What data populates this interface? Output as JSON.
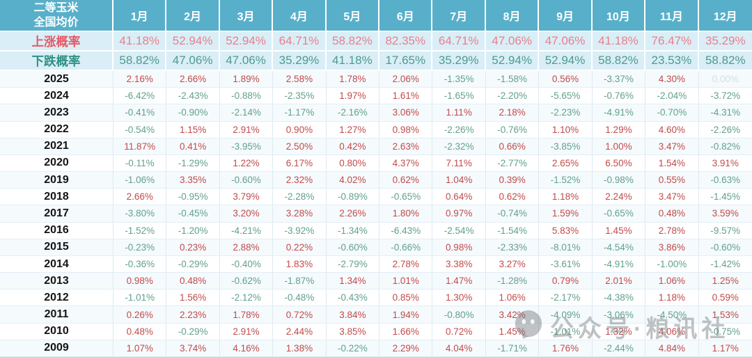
{
  "chart_data": {
    "type": "table",
    "title": "二等玉米 全国均价",
    "corner_header": [
      "二等玉米",
      "全国均价"
    ],
    "columns": [
      "1月",
      "2月",
      "3月",
      "4月",
      "5月",
      "6月",
      "7月",
      "8月",
      "9月",
      "10月",
      "11月",
      "12月"
    ],
    "probability_rows": [
      {
        "label": "上涨概率",
        "values": [
          "41.18%",
          "52.94%",
          "52.94%",
          "64.71%",
          "58.82%",
          "82.35%",
          "64.71%",
          "47.06%",
          "47.06%",
          "41.18%",
          "76.47%",
          "35.29%"
        ]
      },
      {
        "label": "下跌概率",
        "values": [
          "58.82%",
          "47.06%",
          "47.06%",
          "35.29%",
          "41.18%",
          "17.65%",
          "35.29%",
          "52.94%",
          "52.94%",
          "58.82%",
          "23.53%",
          "58.82%"
        ]
      }
    ],
    "year_rows": [
      {
        "label": "2025",
        "values": [
          "2.16%",
          "2.66%",
          "1.89%",
          "2.58%",
          "1.78%",
          "2.06%",
          "-1.35%",
          "-1.58%",
          "0.56%",
          "-3.37%",
          "4.30%",
          "0.00%"
        ]
      },
      {
        "label": "2024",
        "values": [
          "-6.42%",
          "-2.43%",
          "-0.88%",
          "-2.35%",
          "1.97%",
          "1.61%",
          "-1.65%",
          "-2.20%",
          "-5.65%",
          "-0.76%",
          "-2.04%",
          "-3.72%"
        ]
      },
      {
        "label": "2023",
        "values": [
          "-0.41%",
          "-0.90%",
          "-2.14%",
          "-1.17%",
          "-2.16%",
          "3.06%",
          "1.11%",
          "2.18%",
          "-2.23%",
          "-4.91%",
          "-0.70%",
          "-4.31%"
        ]
      },
      {
        "label": "2022",
        "values": [
          "-0.54%",
          "1.15%",
          "2.91%",
          "0.90%",
          "1.27%",
          "0.98%",
          "-2.26%",
          "-0.76%",
          "1.10%",
          "1.29%",
          "4.60%",
          "-2.26%"
        ]
      },
      {
        "label": "2021",
        "values": [
          "11.87%",
          "0.41%",
          "-3.95%",
          "2.50%",
          "0.42%",
          "2.63%",
          "-2.32%",
          "0.66%",
          "-3.85%",
          "1.00%",
          "3.47%",
          "-0.82%"
        ]
      },
      {
        "label": "2020",
        "values": [
          "-0.11%",
          "-1.29%",
          "1.22%",
          "6.17%",
          "0.80%",
          "4.37%",
          "7.11%",
          "-2.77%",
          "2.65%",
          "6.50%",
          "1.54%",
          "3.91%"
        ]
      },
      {
        "label": "2019",
        "values": [
          "-1.06%",
          "3.35%",
          "-0.60%",
          "2.32%",
          "4.02%",
          "0.62%",
          "1.04%",
          "0.39%",
          "-1.52%",
          "-0.98%",
          "0.55%",
          "-0.63%"
        ]
      },
      {
        "label": "2018",
        "values": [
          "2.66%",
          "-0.95%",
          "3.79%",
          "-2.28%",
          "-0.89%",
          "-0.65%",
          "0.64%",
          "0.62%",
          "1.18%",
          "2.24%",
          "3.47%",
          "-1.45%"
        ]
      },
      {
        "label": "2017",
        "values": [
          "-3.80%",
          "-0.45%",
          "3.20%",
          "3.28%",
          "2.26%",
          "1.80%",
          "0.97%",
          "-0.74%",
          "1.59%",
          "-0.65%",
          "0.48%",
          "3.59%"
        ]
      },
      {
        "label": "2016",
        "values": [
          "-1.52%",
          "-1.20%",
          "-4.21%",
          "-3.92%",
          "-1.34%",
          "-6.43%",
          "-2.54%",
          "-1.54%",
          "5.83%",
          "1.45%",
          "2.78%",
          "-9.57%"
        ]
      },
      {
        "label": "2015",
        "values": [
          "-0.23%",
          "0.23%",
          "2.88%",
          "0.22%",
          "-0.60%",
          "-0.66%",
          "0.98%",
          "-2.33%",
          "-8.01%",
          "-4.54%",
          "3.86%",
          "-0.60%"
        ]
      },
      {
        "label": "2014",
        "values": [
          "-0.36%",
          "-0.29%",
          "-0.40%",
          "1.83%",
          "-2.79%",
          "2.78%",
          "3.38%",
          "3.27%",
          "-3.61%",
          "-4.91%",
          "-1.00%",
          "-1.42%"
        ]
      },
      {
        "label": "2013",
        "values": [
          "0.98%",
          "0.48%",
          "-0.62%",
          "-1.87%",
          "1.34%",
          "1.01%",
          "1.47%",
          "-1.28%",
          "0.79%",
          "2.01%",
          "1.06%",
          "1.25%"
        ]
      },
      {
        "label": "2012",
        "values": [
          "-1.01%",
          "1.56%",
          "-2.12%",
          "-0.48%",
          "-0.43%",
          "0.85%",
          "1.30%",
          "1.06%",
          "-2.17%",
          "-4.38%",
          "1.18%",
          "0.59%"
        ]
      },
      {
        "label": "2011",
        "values": [
          "0.26%",
          "2.23%",
          "1.78%",
          "0.72%",
          "3.84%",
          "1.94%",
          "-0.80%",
          "3.42%",
          "-4.09%",
          "-3.06%",
          "-4.50%",
          "1.53%"
        ]
      },
      {
        "label": "2010",
        "values": [
          "0.48%",
          "-0.29%",
          "2.91%",
          "2.44%",
          "3.85%",
          "1.66%",
          "0.72%",
          "1.45%",
          "-1.01%",
          "1.32%",
          "4.06%",
          "-0.75%"
        ]
      },
      {
        "label": "2009",
        "values": [
          "1.07%",
          "3.74%",
          "4.16%",
          "1.38%",
          "-0.22%",
          "2.29%",
          "4.04%",
          "-1.71%",
          "1.76%",
          "-2.44%",
          "4.84%",
          "1.17%"
        ]
      }
    ]
  },
  "watermark": {
    "icon": "wechat-icon",
    "text": "公众号·粮讯社"
  },
  "colors": {
    "header_bg": "#58AFCA",
    "prob_bg": "#D9EEF7",
    "up_label": "#E45A66",
    "up_value": "#EB7E8A",
    "down_label": "#2E9285",
    "down_value": "#4E9A8C",
    "positive": "#C24A4A",
    "negative": "#61A08C",
    "flat": "#D5DEE4"
  }
}
